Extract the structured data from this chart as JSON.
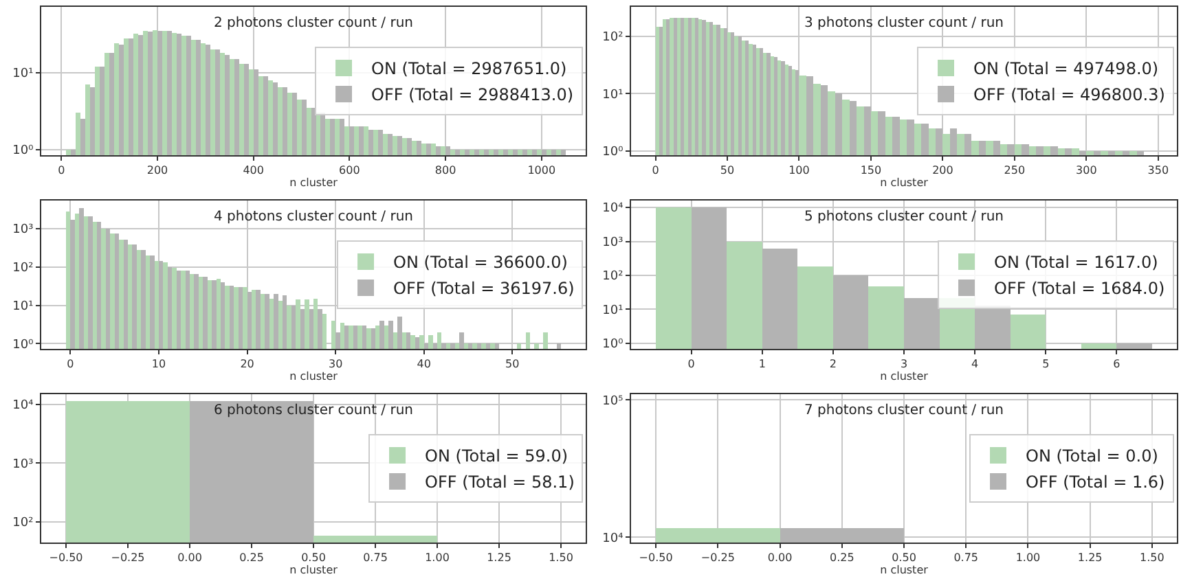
{
  "chart_data": [
    {
      "type": "histogram",
      "title": "2 photons cluster count / run",
      "xlabel": "n cluster",
      "log": true,
      "grid": true,
      "legend": "right",
      "bins": [
        10,
        30,
        50,
        70,
        90,
        110,
        130,
        150,
        170,
        190,
        210,
        230,
        250,
        270,
        290,
        310,
        330,
        350,
        370,
        390,
        410,
        430,
        450,
        470,
        490,
        510,
        530,
        550,
        570,
        590,
        610,
        630,
        650,
        670,
        690,
        710,
        730,
        750,
        770,
        790,
        810,
        830,
        850,
        870,
        890,
        910,
        930,
        950,
        970,
        990,
        1010,
        1030,
        1050
      ],
      "series": [
        {
          "name": "ON (Total = 2987651.0)",
          "color": "#b3d9b3",
          "values": [
            1,
            3,
            7,
            12,
            18,
            24,
            28,
            32,
            35,
            36,
            35,
            33,
            30,
            27,
            24,
            20,
            18,
            15,
            13,
            11,
            9,
            8,
            6.5,
            5.5,
            4.5,
            3.5,
            3,
            2.5,
            2.5,
            2,
            2,
            2,
            1.8,
            1.6,
            1.5,
            1.4,
            1.3,
            1.2,
            1.2,
            1.1,
            1,
            1,
            1,
            1,
            1,
            1,
            1,
            1,
            1,
            1,
            1,
            1
          ]
        },
        {
          "name": "OFF (Total = 2988413.0)",
          "color": "#b3b3b3",
          "values": [
            1,
            2.5,
            6.5,
            12,
            18,
            23,
            28,
            31,
            34,
            35,
            35,
            32,
            30,
            27,
            23,
            20,
            17,
            15,
            13,
            11,
            9,
            7.5,
            6.5,
            5.5,
            4.5,
            3.5,
            3,
            2.5,
            2.5,
            2,
            2,
            1.8,
            1.8,
            1.6,
            1.5,
            1.4,
            1.3,
            1.2,
            1.1,
            1.1,
            1,
            1,
            1,
            1,
            1,
            1,
            1,
            1,
            1,
            1,
            1,
            1
          ]
        }
      ],
      "xlim": [
        -42,
        1092
      ],
      "xticks": [
        0,
        200,
        400,
        600,
        800,
        1000
      ],
      "ylim": [
        0.84,
        72
      ],
      "yticks": [
        {
          "value": 1,
          "label": "10⁰"
        },
        {
          "value": 10,
          "label": "10¹"
        }
      ]
    },
    {
      "type": "histogram",
      "title": "3 photons cluster count / run",
      "xlabel": "n cluster",
      "log": true,
      "grid": true,
      "legend": "right",
      "bins": [
        0,
        5,
        10,
        15,
        20,
        25,
        30,
        35,
        40,
        45,
        50,
        55,
        60,
        65,
        70,
        75,
        80,
        85,
        90,
        95,
        100,
        110,
        120,
        130,
        140,
        150,
        160,
        170,
        180,
        190,
        200,
        210,
        220,
        230,
        240,
        250,
        260,
        270,
        280,
        290,
        300,
        310,
        320,
        330,
        340
      ],
      "series": [
        {
          "name": "ON (Total = 497498.0)",
          "color": "#b3d9b3",
          "values": [
            150,
            200,
            210,
            215,
            215,
            210,
            200,
            180,
            160,
            140,
            120,
            100,
            85,
            75,
            62,
            52,
            45,
            38,
            32,
            27,
            21,
            15,
            11,
            8,
            6,
            5,
            4,
            3.5,
            3,
            2.5,
            2,
            2,
            1.5,
            1.5,
            1.3,
            1.3,
            1.2,
            1.2,
            1.1,
            1.1,
            1,
            1,
            1,
            1
          ]
        },
        {
          "name": "OFF (Total = 496800.3)",
          "color": "#b3b3b3",
          "values": [
            150,
            200,
            210,
            210,
            215,
            210,
            195,
            180,
            160,
            140,
            120,
            100,
            85,
            72,
            62,
            52,
            44,
            37,
            31,
            26,
            20,
            14,
            10,
            7.5,
            6,
            5,
            4,
            3.5,
            3,
            2.5,
            2.5,
            2,
            1.5,
            1.5,
            1.3,
            1.3,
            1.2,
            1.2,
            1.1,
            1,
            1,
            1,
            1,
            1
          ]
        }
      ],
      "xlim": [
        -17,
        363
      ],
      "xticks": [
        0,
        50,
        100,
        150,
        200,
        250,
        300,
        350
      ],
      "ylim": [
        0.84,
        330
      ],
      "yticks": [
        {
          "value": 1,
          "label": "10⁰"
        },
        {
          "value": 10,
          "label": "10¹"
        },
        {
          "value": 100,
          "label": "10²"
        }
      ]
    },
    {
      "type": "histogram",
      "title": "4 photons cluster count / run",
      "xlabel": "n cluster",
      "log": true,
      "grid": true,
      "legend": "right",
      "bins": [
        -0.5,
        0.5,
        1.5,
        2.5,
        3.5,
        4.5,
        5.5,
        6.5,
        7.5,
        8.5,
        9.5,
        10.5,
        11.5,
        12.5,
        13.5,
        14.5,
        15.5,
        16.5,
        17.5,
        18.5,
        19.5,
        20.5,
        21.5,
        22.5,
        23.5,
        24.5,
        25.5,
        26.5,
        27.5,
        28.5,
        29.5,
        30.5,
        31.5,
        32.5,
        33.5,
        34.5,
        35.5,
        36.5,
        37.5,
        38.5,
        39.5,
        40.5,
        41.5,
        42.5,
        43.5,
        44.5,
        45.5,
        46.5,
        47.5,
        48.5,
        49.5,
        50.5,
        51.5,
        52.5,
        53.5,
        54.5,
        55.5
      ],
      "series": [
        {
          "name": "ON (Total = 36600.0)",
          "color": "#b3d9b3",
          "values": [
            2800,
            2500,
            2100,
            1500,
            1000,
            750,
            520,
            380,
            280,
            200,
            145,
            130,
            95,
            80,
            65,
            55,
            45,
            50,
            33,
            30,
            30,
            25,
            20,
            15,
            13,
            10,
            14,
            14,
            15,
            6,
            4,
            3.5,
            3,
            3,
            2.5,
            3,
            3,
            2,
            2,
            1.7,
            1.7,
            1.7,
            2,
            1,
            1,
            1,
            1,
            1,
            1,
            null,
            null,
            1,
            2,
            1,
            2,
            null
          ]
        },
        {
          "name": "OFF (Total = 36197.6)",
          "color": "#b3b3b3",
          "values": [
            1700,
            3400,
            2100,
            1500,
            1000,
            750,
            520,
            380,
            280,
            200,
            145,
            100,
            80,
            80,
            65,
            55,
            45,
            40,
            33,
            30,
            22,
            25,
            20,
            20,
            18,
            10,
            8,
            8,
            8,
            null,
            2,
            3,
            3,
            3,
            2.5,
            4,
            4,
            5,
            2,
            1.5,
            1,
            1,
            1,
            1,
            2,
            1,
            1,
            1,
            1,
            null,
            null,
            null,
            null,
            null,
            null,
            1
          ]
        }
      ],
      "xlim": [
        -3.3,
        58.3
      ],
      "xticks": [
        0,
        10,
        20,
        30,
        40,
        50
      ],
      "ylim": [
        0.73,
        5400
      ],
      "yticks": [
        {
          "value": 1,
          "label": "10⁰"
        },
        {
          "value": 10,
          "label": "10¹"
        },
        {
          "value": 100,
          "label": "10²"
        },
        {
          "value": 1000,
          "label": "10³"
        }
      ]
    },
    {
      "type": "histogram",
      "title": "5 photons cluster count / run",
      "xlabel": "n cluster",
      "log": true,
      "grid": true,
      "legend": "right",
      "bins": [
        -0.5,
        0.5,
        1.5,
        2.5,
        3.5,
        4.5,
        5.5,
        6.5
      ],
      "series": [
        {
          "name": "ON (Total = 1617.0)",
          "color": "#b3d9b3",
          "values": [
            10000,
            1000,
            180,
            48,
            21,
            7,
            1
          ]
        },
        {
          "name": "OFF (Total = 1684.0)",
          "color": "#b3b3b3",
          "values": [
            10000,
            600,
            100,
            21,
            13,
            null,
            1
          ]
        }
      ],
      "xlim": [
        -0.85,
        6.85
      ],
      "xticks": [
        0,
        1,
        2,
        3,
        4,
        5,
        6
      ],
      "ylim": [
        0.68,
        16000
      ],
      "yticks": [
        {
          "value": 1,
          "label": "10⁰"
        },
        {
          "value": 10,
          "label": "10¹"
        },
        {
          "value": 100,
          "label": "10²"
        },
        {
          "value": 1000,
          "label": "10³"
        },
        {
          "value": 10000,
          "label": "10⁴"
        }
      ]
    },
    {
      "type": "histogram",
      "title": "6 photons cluster count / run",
      "xlabel": "n cluster",
      "log": true,
      "grid": true,
      "legend": "right",
      "bins": [
        -0.5,
        0.5,
        1.5
      ],
      "series": [
        {
          "name": "ON (Total = 59.0)",
          "color": "#b3d9b3",
          "values": [
            11500,
            57
          ]
        },
        {
          "name": "OFF (Total = 58.1)",
          "color": "#b3b3b3",
          "values": [
            11500,
            null
          ]
        }
      ],
      "xlim": [
        -0.6,
        1.6
      ],
      "xticks": [
        {
          "value": -0.5,
          "label": "−0.50"
        },
        {
          "value": -0.25,
          "label": "−0.25"
        },
        {
          "value": 0,
          "label": "0.00"
        },
        {
          "value": 0.25,
          "label": "0.25"
        },
        {
          "value": 0.5,
          "label": "0.50"
        },
        {
          "value": 0.75,
          "label": "0.75"
        },
        {
          "value": 1,
          "label": "1.00"
        },
        {
          "value": 1.25,
          "label": "1.25"
        },
        {
          "value": 1.5,
          "label": "1.50"
        }
      ],
      "ylim": [
        44,
        15000
      ],
      "yticks": [
        {
          "value": 100,
          "label": "10²"
        },
        {
          "value": 1000,
          "label": "10³"
        },
        {
          "value": 10000,
          "label": "10⁴"
        }
      ]
    },
    {
      "type": "histogram",
      "title": "7 photons cluster count / run",
      "xlabel": "n cluster",
      "log": true,
      "grid": true,
      "legend": "right",
      "bins": [
        -0.5,
        0.5,
        1.5
      ],
      "series": [
        {
          "name": "ON (Total = 0.0)",
          "color": "#b3d9b3",
          "values": [
            11600,
            null
          ]
        },
        {
          "name": "OFF (Total = 1.6)",
          "color": "#b3b3b3",
          "values": [
            11600,
            null
          ]
        }
      ],
      "xlim": [
        -0.6,
        1.6
      ],
      "xticks": [
        {
          "value": -0.5,
          "label": "−0.50"
        },
        {
          "value": -0.25,
          "label": "−0.25"
        },
        {
          "value": 0,
          "label": "0.00"
        },
        {
          "value": 0.25,
          "label": "0.25"
        },
        {
          "value": 0.5,
          "label": "0.50"
        },
        {
          "value": 0.75,
          "label": "0.75"
        },
        {
          "value": 1,
          "label": "1.00"
        },
        {
          "value": 1.25,
          "label": "1.25"
        },
        {
          "value": 1.5,
          "label": "1.50"
        }
      ],
      "ylim": [
        9150,
        110000
      ],
      "yticks": [
        {
          "value": 10000,
          "label": "10⁴"
        },
        {
          "value": 100000,
          "label": "10⁵"
        }
      ]
    }
  ]
}
